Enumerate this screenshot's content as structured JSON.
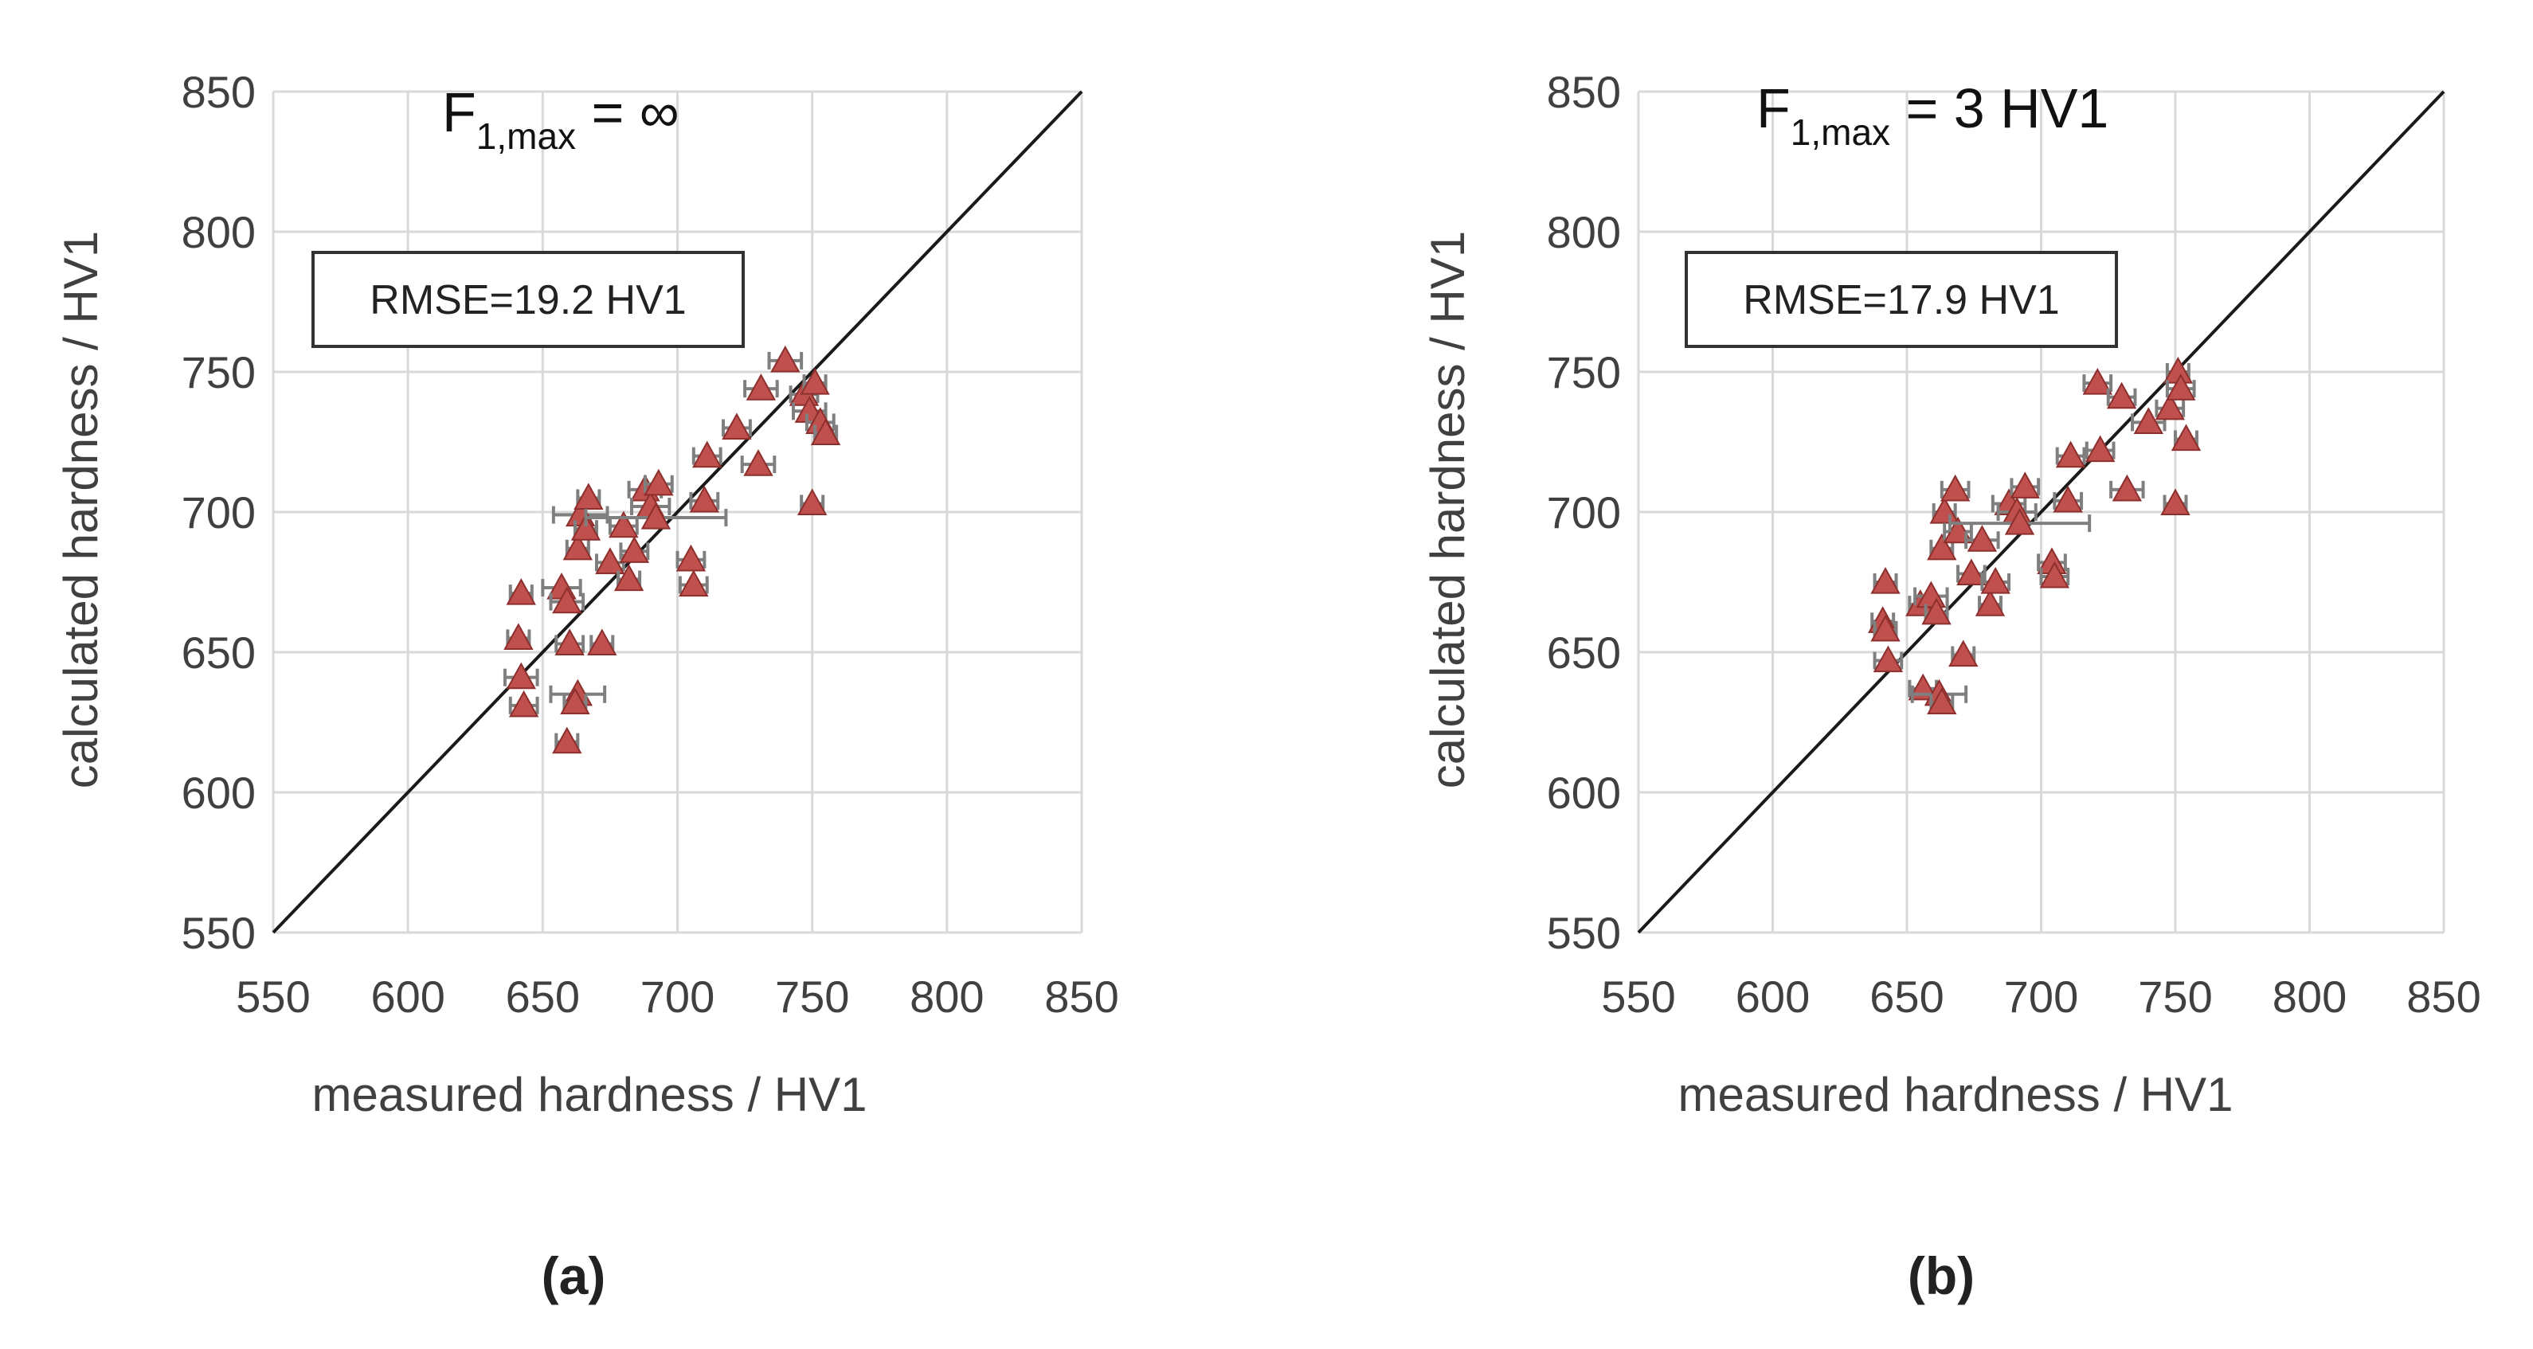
{
  "chart_data": [
    {
      "type": "scatter",
      "panel_label": "(a)",
      "fmax_prefix": "F",
      "fmax_sub": "1,max",
      "fmax_value": " = ∞",
      "annotation": "RMSE=19.2 HV1",
      "xlabel": "measured hardness / HV1",
      "ylabel": "calculated hardness / HV1",
      "xlim": [
        550,
        850
      ],
      "ylim": [
        550,
        850
      ],
      "xticks": [
        550,
        600,
        650,
        700,
        750,
        800,
        850
      ],
      "yticks": [
        550,
        600,
        650,
        700,
        750,
        800,
        850
      ],
      "grid": true,
      "reference_line": "y = x",
      "marker": "triangle",
      "marker_color": "#C0504D",
      "points": [
        {
          "x": 642,
          "y": 671,
          "xerr": 4
        },
        {
          "x": 641,
          "y": 655,
          "xerr": 4
        },
        {
          "x": 642,
          "y": 641,
          "xerr": 6
        },
        {
          "x": 643,
          "y": 631,
          "xerr": 5
        },
        {
          "x": 657,
          "y": 673,
          "xerr": 7
        },
        {
          "x": 659,
          "y": 668,
          "xerr": 6
        },
        {
          "x": 660,
          "y": 653,
          "xerr": 5
        },
        {
          "x": 659,
          "y": 618,
          "xerr": 4
        },
        {
          "x": 663,
          "y": 635,
          "xerr": 10
        },
        {
          "x": 662,
          "y": 632,
          "xerr": 4
        },
        {
          "x": 664,
          "y": 699,
          "xerr": 10
        },
        {
          "x": 663,
          "y": 687,
          "xerr": 4
        },
        {
          "x": 667,
          "y": 705,
          "xerr": 4
        },
        {
          "x": 666,
          "y": 694,
          "xerr": 4
        },
        {
          "x": 672,
          "y": 653,
          "xerr": 4
        },
        {
          "x": 675,
          "y": 682,
          "xerr": 5
        },
        {
          "x": 680,
          "y": 695,
          "xerr": 5
        },
        {
          "x": 682,
          "y": 676,
          "xerr": 4
        },
        {
          "x": 684,
          "y": 686,
          "xerr": 5
        },
        {
          "x": 688,
          "y": 708,
          "xerr": 6
        },
        {
          "x": 690,
          "y": 702,
          "xerr": 7
        },
        {
          "x": 692,
          "y": 698,
          "xerr": 26
        },
        {
          "x": 693,
          "y": 710,
          "xerr": 5
        },
        {
          "x": 705,
          "y": 683,
          "xerr": 5
        },
        {
          "x": 706,
          "y": 674,
          "xerr": 5
        },
        {
          "x": 710,
          "y": 704,
          "xerr": 5
        },
        {
          "x": 711,
          "y": 720,
          "xerr": 5
        },
        {
          "x": 722,
          "y": 730,
          "xerr": 5
        },
        {
          "x": 730,
          "y": 717,
          "xerr": 6
        },
        {
          "x": 731,
          "y": 744,
          "xerr": 6
        },
        {
          "x": 740,
          "y": 754,
          "xerr": 6
        },
        {
          "x": 747,
          "y": 742,
          "xerr": 5
        },
        {
          "x": 749,
          "y": 736,
          "xerr": 6
        },
        {
          "x": 750,
          "y": 703,
          "xerr": 4
        },
        {
          "x": 751,
          "y": 746,
          "xerr": 4
        },
        {
          "x": 753,
          "y": 732,
          "xerr": 5
        },
        {
          "x": 755,
          "y": 728,
          "xerr": 4
        }
      ]
    },
    {
      "type": "scatter",
      "panel_label": "(b)",
      "fmax_prefix": "F",
      "fmax_sub": "1,max",
      "fmax_value": " = 3 HV1",
      "annotation": "RMSE=17.9 HV1",
      "xlabel": "measured hardness / HV1",
      "ylabel": "calculated hardness / HV1",
      "xlim": [
        550,
        850
      ],
      "ylim": [
        550,
        850
      ],
      "xticks": [
        550,
        600,
        650,
        700,
        750,
        800,
        850
      ],
      "yticks": [
        550,
        600,
        650,
        700,
        750,
        800,
        850
      ],
      "grid": true,
      "reference_line": "y = x",
      "marker": "triangle",
      "marker_color": "#C0504D",
      "points": [
        {
          "x": 642,
          "y": 675,
          "xerr": 4
        },
        {
          "x": 641,
          "y": 661,
          "xerr": 4
        },
        {
          "x": 642,
          "y": 658,
          "xerr": 4
        },
        {
          "x": 643,
          "y": 647,
          "xerr": 5
        },
        {
          "x": 655,
          "y": 667,
          "xerr": 4
        },
        {
          "x": 656,
          "y": 637,
          "xerr": 5
        },
        {
          "x": 659,
          "y": 670,
          "xerr": 6
        },
        {
          "x": 661,
          "y": 664,
          "xerr": 4
        },
        {
          "x": 662,
          "y": 635,
          "xerr": 10
        },
        {
          "x": 663,
          "y": 632,
          "xerr": 4
        },
        {
          "x": 664,
          "y": 700,
          "xerr": 4
        },
        {
          "x": 663,
          "y": 687,
          "xerr": 4
        },
        {
          "x": 668,
          "y": 708,
          "xerr": 5
        },
        {
          "x": 669,
          "y": 693,
          "xerr": 5
        },
        {
          "x": 671,
          "y": 649,
          "xerr": 4
        },
        {
          "x": 674,
          "y": 678,
          "xerr": 5
        },
        {
          "x": 678,
          "y": 690,
          "xerr": 6
        },
        {
          "x": 681,
          "y": 667,
          "xerr": 4
        },
        {
          "x": 683,
          "y": 675,
          "xerr": 5
        },
        {
          "x": 688,
          "y": 703,
          "xerr": 6
        },
        {
          "x": 691,
          "y": 700,
          "xerr": 7
        },
        {
          "x": 692,
          "y": 696,
          "xerr": 26
        },
        {
          "x": 694,
          "y": 709,
          "xerr": 5
        },
        {
          "x": 704,
          "y": 682,
          "xerr": 5
        },
        {
          "x": 705,
          "y": 677,
          "xerr": 5
        },
        {
          "x": 710,
          "y": 704,
          "xerr": 5
        },
        {
          "x": 711,
          "y": 720,
          "xerr": 5
        },
        {
          "x": 721,
          "y": 746,
          "xerr": 5
        },
        {
          "x": 722,
          "y": 722,
          "xerr": 5
        },
        {
          "x": 730,
          "y": 741,
          "xerr": 5
        },
        {
          "x": 732,
          "y": 708,
          "xerr": 6
        },
        {
          "x": 740,
          "y": 732,
          "xerr": 6
        },
        {
          "x": 748,
          "y": 737,
          "xerr": 5
        },
        {
          "x": 750,
          "y": 703,
          "xerr": 4
        },
        {
          "x": 751,
          "y": 750,
          "xerr": 4
        },
        {
          "x": 752,
          "y": 744,
          "xerr": 5
        },
        {
          "x": 754,
          "y": 726,
          "xerr": 4
        }
      ]
    }
  ]
}
